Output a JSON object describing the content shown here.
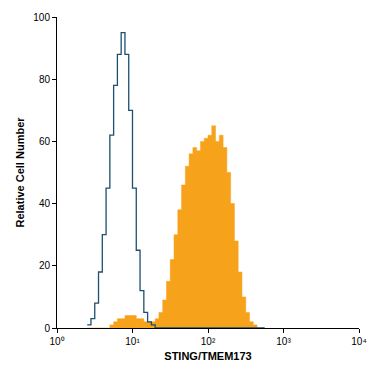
{
  "chart_data": {
    "type": "histogram",
    "x_label": "STING/TMEM173",
    "y_label": "Relative Cell Number",
    "log": "x",
    "grid": false,
    "xlim": [
      1,
      10000
    ],
    "xticks": [
      {
        "value": 1,
        "label": "10⁰"
      },
      {
        "value": 10,
        "label": "10¹"
      },
      {
        "value": 100,
        "label": "10²"
      },
      {
        "value": 1000,
        "label": "10³"
      },
      {
        "value": 10000,
        "label": "10⁴"
      }
    ],
    "ylim": [
      0,
      100
    ],
    "yticks": [
      0,
      20,
      40,
      60,
      80,
      100
    ],
    "bins": [
      2.512,
      2.818,
      3.162,
      3.548,
      3.981,
      4.467,
      5.012,
      5.623,
      6.31,
      7.079,
      7.943,
      8.913,
      10.0,
      11.22,
      12.59,
      14.13,
      15.85,
      17.78,
      19.95,
      22.39,
      25.12,
      28.18,
      31.62,
      35.48,
      39.81,
      44.67,
      50.12,
      56.23,
      63.1,
      70.79,
      79.43,
      89.13,
      100.0,
      112.2,
      125.9,
      141.3,
      158.5,
      177.8,
      199.5,
      223.9,
      251.2,
      281.8,
      316.2,
      354.8,
      398.1,
      446.7,
      501.2,
      562.3
    ],
    "series": [
      {
        "type": "area",
        "color": "#f7a21b",
        "values": [
          0,
          0,
          0,
          0,
          0,
          0,
          1,
          2,
          3,
          3,
          4,
          4,
          4,
          3,
          3,
          2,
          2,
          2,
          3,
          5,
          9,
          15,
          22,
          30,
          38,
          46,
          52,
          56,
          58,
          57,
          60,
          61,
          62,
          65,
          60,
          62,
          58,
          50,
          40,
          28,
          18,
          10,
          5,
          2,
          1,
          0,
          0
        ]
      },
      {
        "type": "line",
        "color": "#1d4f6e",
        "values": [
          1,
          3,
          8,
          18,
          30,
          45,
          62,
          78,
          88,
          95,
          88,
          70,
          45,
          25,
          12,
          5,
          2,
          1,
          0,
          0,
          0,
          0,
          0,
          0,
          0,
          0,
          0,
          0,
          0,
          0,
          0,
          0,
          0,
          0,
          0,
          0,
          0,
          0,
          0,
          0,
          0,
          0,
          0,
          0,
          0,
          0,
          0
        ]
      }
    ]
  }
}
